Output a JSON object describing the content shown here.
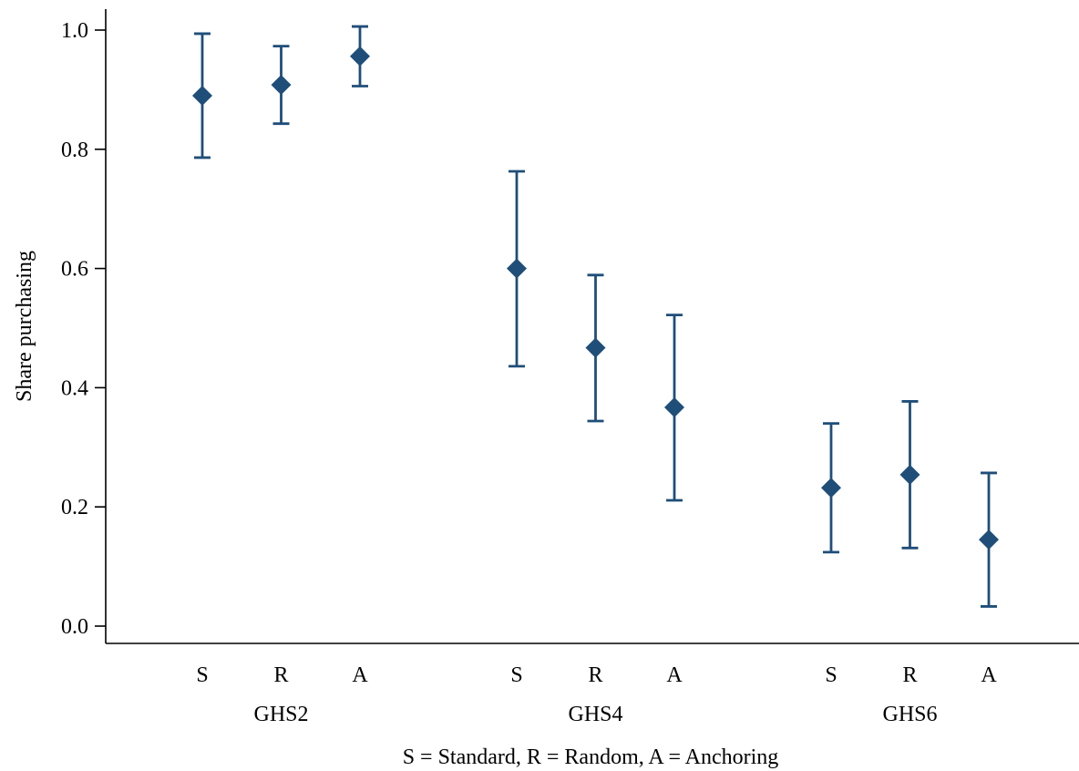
{
  "chart_data": {
    "type": "scatter",
    "ylabel": "Share purchasing",
    "xlabel": "S = Standard, R = Random, A = Anchoring",
    "ylim": [
      -0.03,
      1.04
    ],
    "yticks": [
      0.0,
      0.2,
      0.4,
      0.6,
      0.8,
      1.0
    ],
    "ytick_labels": [
      "0.0",
      "0.2",
      "0.4",
      "0.6",
      "0.8",
      "1.0"
    ],
    "grid": false,
    "legend": "none",
    "marker": "diamond",
    "color": "#1f4e79",
    "groups": [
      {
        "label": "GHS2",
        "points": [
          {
            "label": "S",
            "value": 0.89,
            "lower": 0.786,
            "upper": 0.994
          },
          {
            "label": "R",
            "value": 0.908,
            "lower": 0.843,
            "upper": 0.973
          },
          {
            "label": "A",
            "value": 0.956,
            "lower": 0.906,
            "upper": 1.006
          }
        ]
      },
      {
        "label": "GHS4",
        "points": [
          {
            "label": "S",
            "value": 0.6,
            "lower": 0.436,
            "upper": 0.763
          },
          {
            "label": "R",
            "value": 0.467,
            "lower": 0.344,
            "upper": 0.589
          },
          {
            "label": "A",
            "value": 0.367,
            "lower": 0.211,
            "upper": 0.522
          }
        ]
      },
      {
        "label": "GHS6",
        "points": [
          {
            "label": "S",
            "value": 0.232,
            "lower": 0.124,
            "upper": 0.34
          },
          {
            "label": "R",
            "value": 0.254,
            "lower": 0.131,
            "upper": 0.377
          },
          {
            "label": "A",
            "value": 0.145,
            "lower": 0.033,
            "upper": 0.257
          }
        ]
      }
    ]
  }
}
